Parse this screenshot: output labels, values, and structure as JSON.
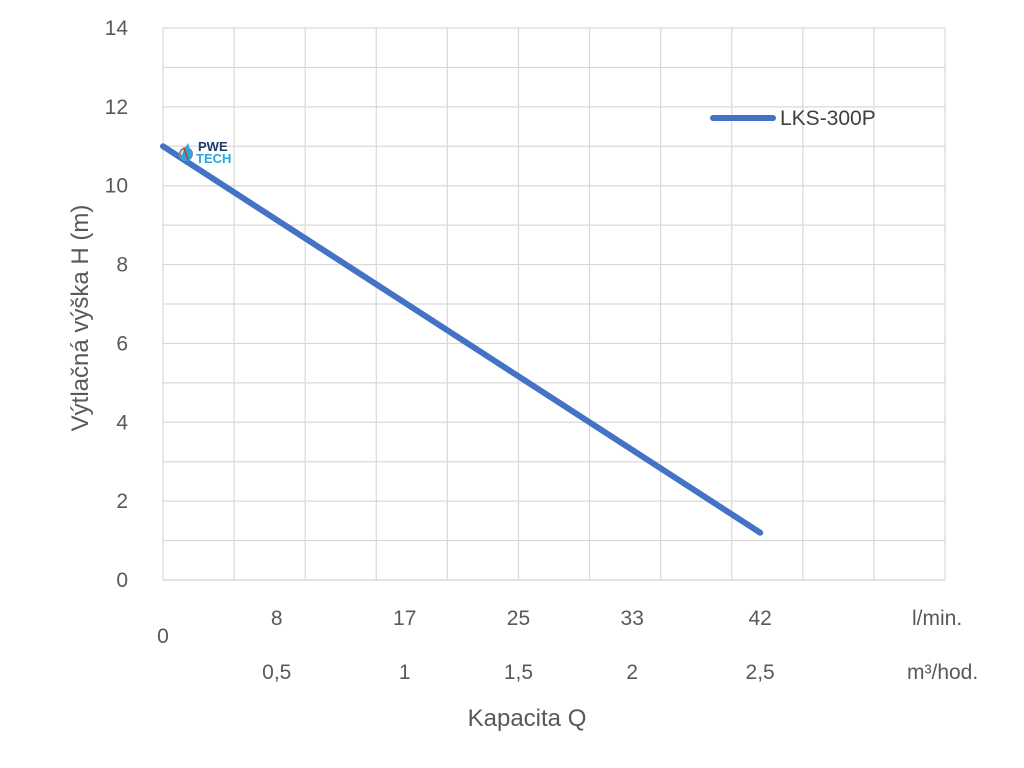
{
  "chart_data": {
    "type": "line",
    "ylabel": "Výtlačná výška H (m)",
    "xlabel": "Kapacita Q",
    "ylim": [
      0,
      14
    ],
    "yticks": [
      0,
      2,
      4,
      6,
      8,
      10,
      12,
      14
    ],
    "x_origin_label": "0",
    "x_ticks_lmin": [
      "8",
      "17",
      "25",
      "33",
      "42"
    ],
    "x_unit_lmin": "l/min.",
    "x_ticks_m3h": [
      "0,5",
      "1",
      "1,5",
      "2",
      "2,5"
    ],
    "x_unit_m3h": "m³/hod.",
    "grid": true,
    "legend_position": "top-right",
    "series": [
      {
        "name": "LKS-300P",
        "color": "#4472C4",
        "x": [
          0,
          42
        ],
        "y": [
          11,
          1.2
        ]
      }
    ]
  },
  "logo": {
    "line1": "PWE",
    "line2": "TECH",
    "color1": "#1f3b6e",
    "color2": "#29a8e0"
  }
}
